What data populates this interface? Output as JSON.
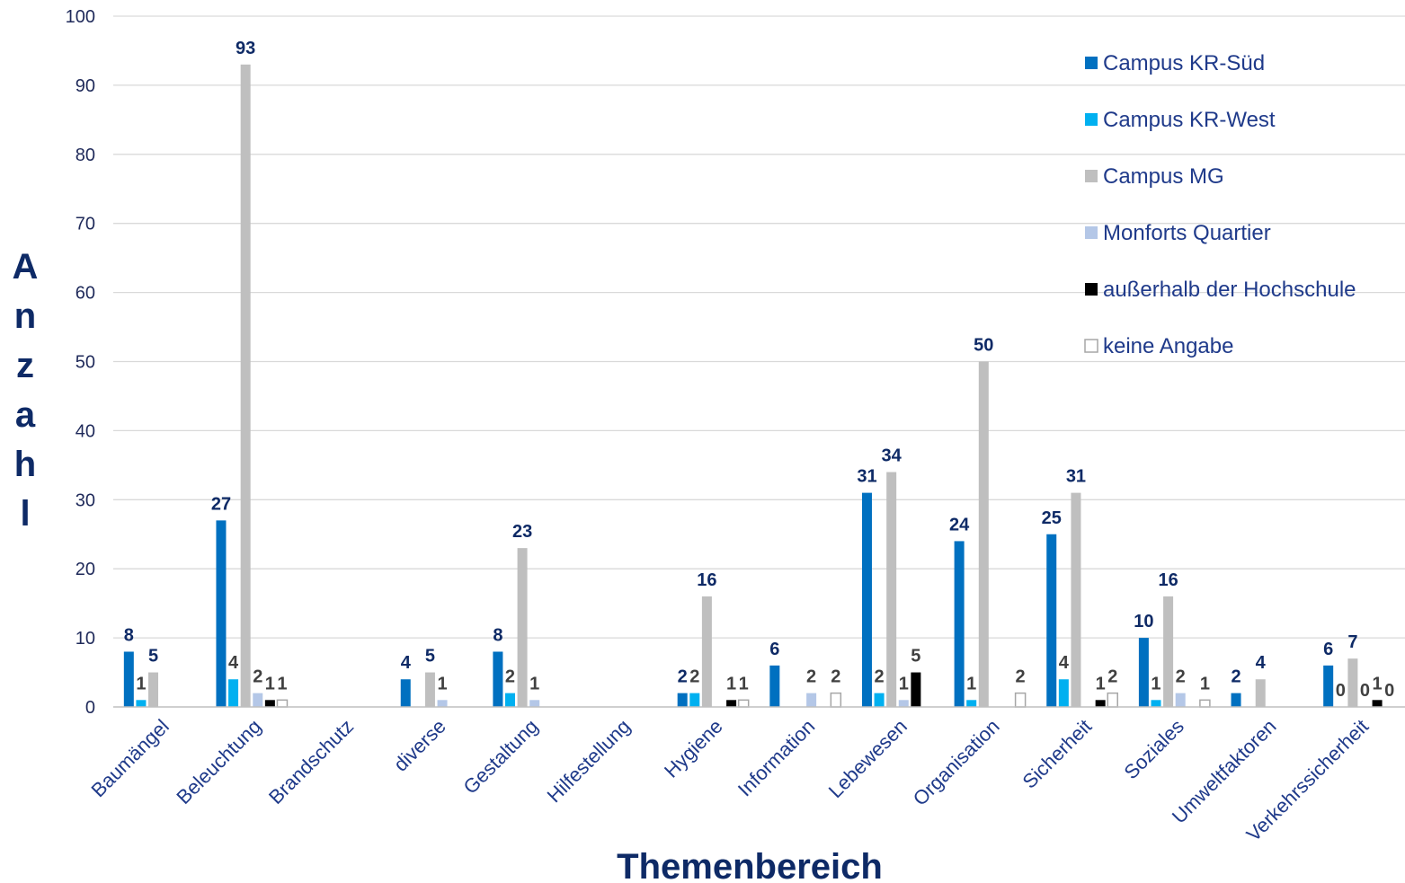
{
  "chart_data": {
    "type": "bar",
    "xlabel": "Themenbereich",
    "ylabel": "Anzahl",
    "ylim": [
      0,
      100
    ],
    "yticks": [
      0,
      10,
      20,
      30,
      40,
      50,
      60,
      70,
      80,
      90,
      100
    ],
    "grid": true,
    "legend_position": "top-right",
    "categories": [
      "Baumängel",
      "Beleuchtung",
      "Brandschutz",
      "diverse",
      "Gestaltung",
      "Hilfestellung",
      "Hygiene",
      "Information",
      "Lebewesen",
      "Organisation",
      "Sicherheit",
      "Soziales",
      "Umweltfaktoren",
      "Verkehrssicherheit"
    ],
    "series": [
      {
        "name": "Campus KR-Süd",
        "color": "#0070c0",
        "label_color": "#0e2a66",
        "values": [
          8,
          27,
          null,
          4,
          8,
          null,
          2,
          6,
          31,
          24,
          25,
          10,
          2,
          6
        ]
      },
      {
        "name": "Campus KR-West",
        "color": "#00b0f0",
        "label_color": "#404040",
        "values": [
          1,
          4,
          null,
          null,
          2,
          null,
          2,
          null,
          2,
          1,
          4,
          1,
          null,
          0
        ]
      },
      {
        "name": "Campus MG",
        "color": "#bfbfbf",
        "label_color": "#0e2a66",
        "values": [
          5,
          93,
          null,
          5,
          23,
          null,
          16,
          null,
          34,
          50,
          31,
          16,
          4,
          7
        ]
      },
      {
        "name": "Monforts Quartier",
        "color": "#b4c7e7",
        "label_color": "#404040",
        "values": [
          null,
          2,
          null,
          1,
          1,
          null,
          null,
          2,
          1,
          null,
          null,
          2,
          null,
          0
        ]
      },
      {
        "name": "außerhalb der Hochschule",
        "color": "#000000",
        "label_color": "#404040",
        "values": [
          null,
          1,
          null,
          null,
          null,
          null,
          1,
          null,
          5,
          null,
          1,
          null,
          null,
          1
        ]
      },
      {
        "name": "keine Angabe",
        "color": "#ffffff",
        "stroke": "#a6a6a6",
        "label_color": "#404040",
        "values": [
          null,
          1,
          null,
          null,
          null,
          null,
          1,
          2,
          null,
          2,
          2,
          1,
          null,
          0
        ]
      }
    ]
  }
}
